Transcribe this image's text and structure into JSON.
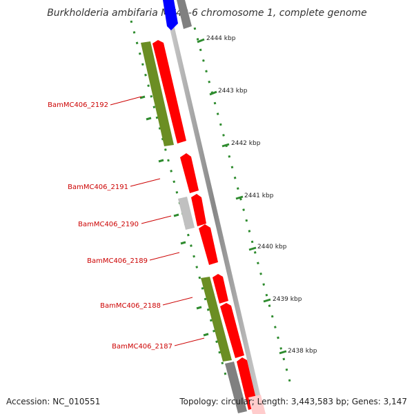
{
  "title": "Burkholderia ambifaria MC40-6 chromosome 1, complete genome",
  "footer": {
    "accession": "Accession: NC_010551",
    "topology": "Topology: circular; Length: 3,443,583 bp; Genes: 3,147"
  },
  "ruler": {
    "labels": [
      "2444 kbp",
      "2443 kbp",
      "2442 kbp",
      "2441 kbp",
      "2440 kbp",
      "2439 kbp",
      "2438 kbp"
    ]
  },
  "genes": {
    "labels": [
      "BamMC406_2192",
      "BamMC406_2191",
      "BamMC406_2190",
      "BamMC406_2189",
      "BamMC406_2188",
      "BamMC406_2187"
    ]
  },
  "colors": {
    "forward_cds": "#ff0000",
    "reverse_cds": "#6b8e23",
    "pseudo": "#c0c0c0",
    "other": "#808080",
    "rna": "#0000ff",
    "label": "#cc0000",
    "tick": "#2e8b2e",
    "backbone": "#999999"
  }
}
